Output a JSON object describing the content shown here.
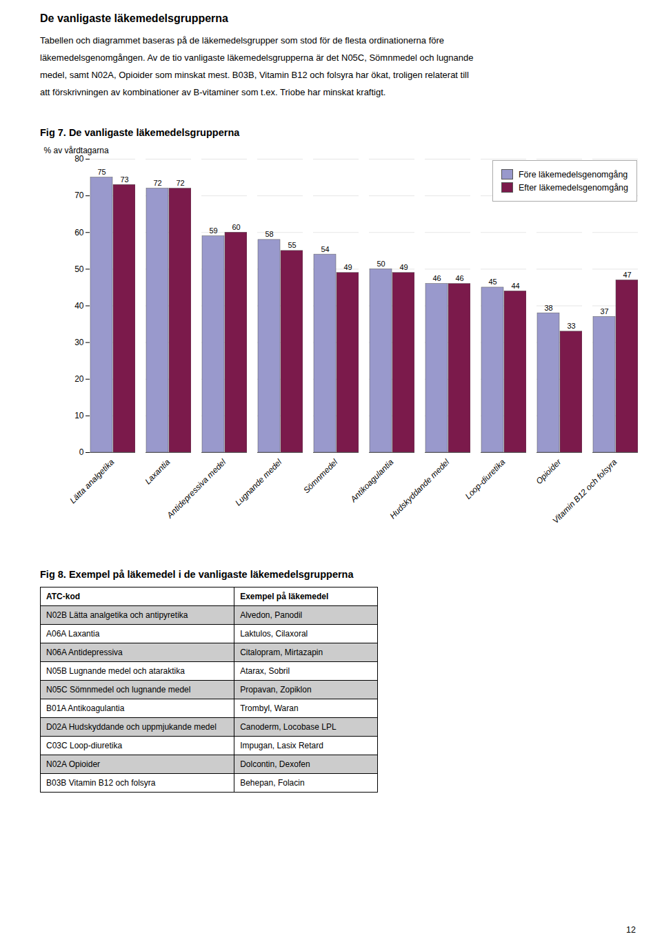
{
  "title": "De vanligaste läkemedelsgrupperna",
  "annotations": [
    "Tabellen och diagrammet baseras på de läkemedelsgrupper som stod för de flesta ordinationerna före",
    "läkemedelsgenomgången. Av de tio vanligaste läkemedelsgrupperna är det N05C, Sömnmedel och lugnande",
    "medel, samt N02A, Opioider som minskat mest. B03B, Vitamin B12 och folsyra har ökat, troligen relaterat till",
    "att förskrivningen av kombinationer av B-vitaminer som t.ex. Triobe har minskat kraftigt."
  ],
  "page_number": "12",
  "chart_data": [
    {
      "type": "bar",
      "title": "Fig 7. De vanligaste läkemedelsgrupperna",
      "categories": [
        "Lätta analgetika",
        "Laxantia",
        "Antidepressiva medel",
        "Lugnande medel",
        "Sömnmedel",
        "Antikoagulantia",
        "Hudskyddande medel",
        "Loop-diuretika",
        "Opioider",
        "Vitamin B12 och folsyra"
      ],
      "series": [
        {
          "name": "Före läkemedelsgenomgång",
          "color": "#9999CC",
          "values": [
            75,
            72,
            59,
            58,
            54,
            50,
            46,
            45,
            38,
            37
          ]
        },
        {
          "name": "Efter läkemedelsgenomgång",
          "color": "#7B1A4B",
          "values": [
            73,
            72,
            60,
            55,
            49,
            49,
            46,
            44,
            33,
            47
          ]
        }
      ],
      "ylabel": "% av vårdtagarna",
      "ylim": [
        0,
        80
      ],
      "yticks": [
        0,
        10,
        20,
        30,
        40,
        50,
        60,
        70,
        80
      ],
      "grid": true,
      "legend": "upper right",
      "data_labels": true
    },
    {
      "type": "table",
      "title": "Fig 8. Exempel på läkemedel i de vanligaste läkemedelsgrupperna",
      "columns": [
        "ATC-kod",
        "Exempel på läkemedel"
      ],
      "rows": [
        [
          "N02B Lätta analgetika och antipyretika",
          "Alvedon, Panodil"
        ],
        [
          "A06A Laxantia",
          "Laktulos, Cilaxoral"
        ],
        [
          "N06A Antidepressiva",
          "Citalopram, Mirtazapin"
        ],
        [
          "N05B Lugnande medel och ataraktika",
          "Atarax, Sobril"
        ],
        [
          "N05C Sömnmedel och lugnande medel",
          "Propavan, Zopiklon"
        ],
        [
          "B01A Antikoagulantia",
          "Trombyl, Waran"
        ],
        [
          "D02A Hudskyddande och uppmjukande medel",
          "Canoderm, Locobase LPL"
        ],
        [
          "C03C Loop-diuretika",
          "Impugan, Lasix Retard"
        ],
        [
          "N02A Opioider",
          "Dolcontin, Dexofen"
        ],
        [
          "B03B Vitamin B12 och folsyra",
          "Behepan, Folacin"
        ]
      ]
    }
  ]
}
